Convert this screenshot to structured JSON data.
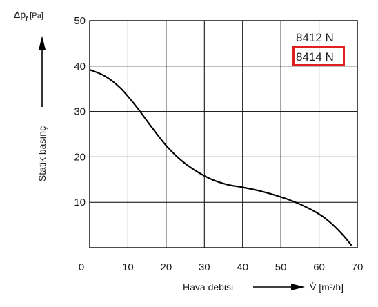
{
  "chart_data": {
    "type": "line",
    "xlabel": "Hava debisi",
    "xunit": "V̇ [m³/h]",
    "ylabel": "Statik basınç",
    "ysymbol": "Δp",
    "ysub": "f",
    "yunit": "[Pa]",
    "xlim": [
      0,
      70
    ],
    "ylim": [
      0,
      50
    ],
    "xticks": [
      0,
      10,
      20,
      30,
      40,
      50,
      60,
      70
    ],
    "yticks": [
      10,
      20,
      30,
      40,
      50
    ],
    "grid": true,
    "legend_position": "top-right",
    "legend": [
      "8412 N",
      "8414 N"
    ],
    "highlighted_legend": "8414 N",
    "highlight_color": "#e0201b",
    "series": [
      {
        "name": "8414 N",
        "color": "#000000",
        "x": [
          0,
          4,
          8,
          12,
          16,
          20,
          24,
          28,
          32,
          36,
          40,
          44,
          48,
          52,
          56,
          60,
          63,
          66,
          68.5
        ],
        "y": [
          39.2,
          37.8,
          35.2,
          31.3,
          26.8,
          22.5,
          19.2,
          16.8,
          15.0,
          13.9,
          13.3,
          12.6,
          11.7,
          10.6,
          9.2,
          7.4,
          5.5,
          3.0,
          0.5
        ]
      }
    ]
  }
}
